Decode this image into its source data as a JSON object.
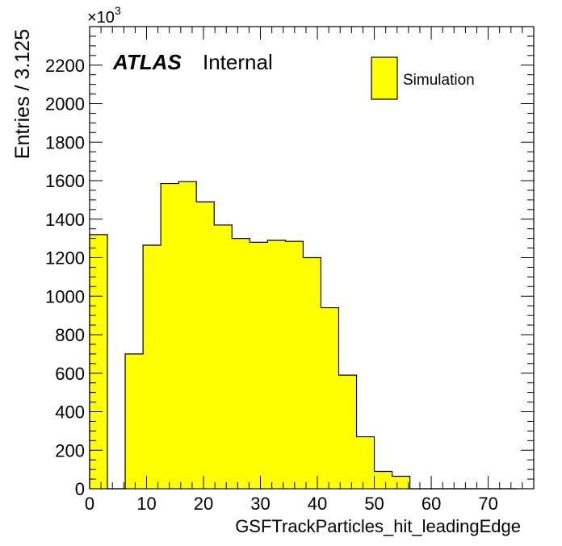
{
  "chart_data": {
    "type": "bar",
    "xlabel": "GSFTrackParticles_hit_leadingEdge",
    "ylabel": "Entries / 3.125",
    "y_multiplier_base": "×10",
    "y_multiplier_exp": "3",
    "atlas_label": "ATLAS",
    "atlas_sublabel": "Internal",
    "legend_position": "top-right",
    "series": [
      {
        "name": "Simulation",
        "color": "#ffff00",
        "edge_color": "#000000"
      }
    ],
    "xlim": [
      0,
      78
    ],
    "ylim": [
      0,
      2400
    ],
    "bin_width": 3.125,
    "bin_values": [
      1320,
      0,
      700,
      1265,
      1585,
      1595,
      1490,
      1370,
      1300,
      1280,
      1290,
      1285,
      1200,
      940,
      590,
      270,
      90,
      65,
      0,
      0,
      0,
      0,
      0,
      0
    ],
    "x_ticks": [
      0,
      10,
      20,
      30,
      40,
      50,
      60,
      70
    ],
    "y_ticks": [
      0,
      200,
      400,
      600,
      800,
      1000,
      1200,
      1400,
      1600,
      1800,
      2000,
      2200
    ],
    "y_unit_note": "values in thousands (×10^3)"
  }
}
